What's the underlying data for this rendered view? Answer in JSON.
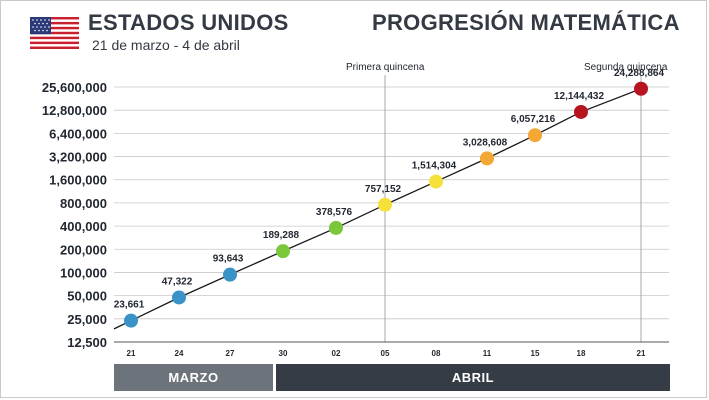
{
  "header": {
    "country": "ESTADOS UNIDOS",
    "date_range": "21 de marzo - 4 de abril",
    "title": "PROGRESIÓN MATEMÁTICA"
  },
  "flag_icon": "us-flag-icon",
  "colors": {
    "line": "#1a1a1a",
    "grid": "#c8c8c8",
    "blue": "#3a93c8",
    "green": "#7cc63a",
    "yellow": "#f5e13a",
    "orange": "#f5a733",
    "red": "#b81420",
    "month_march": "#6c737a",
    "month_april": "#353c46"
  },
  "months": {
    "march": "MARZO",
    "april": "ABRIL"
  },
  "chart_data": {
    "type": "line",
    "title": "PROGRESIÓN MATEMÁTICA",
    "yscale": "log",
    "ylim": [
      12500,
      25600000
    ],
    "grid": "horizontal",
    "categories": [
      "21",
      "24",
      "27",
      "30",
      "02",
      "05",
      "08",
      "11",
      "15",
      "18",
      "21"
    ],
    "values": [
      23661,
      47322,
      93643,
      189288,
      378576,
      757152,
      1514304,
      3028608,
      6057216,
      12144432,
      24288864
    ],
    "value_labels": [
      "23,661",
      "47,322",
      "93,643",
      "189,288",
      "378,576",
      "757,152",
      "1,514,304",
      "3,028,608",
      "6,057,216",
      "12,144,432",
      "24,288,864"
    ],
    "point_colors": [
      "blue",
      "blue",
      "blue",
      "green",
      "green",
      "yellow",
      "yellow",
      "orange",
      "orange",
      "red",
      "red"
    ],
    "yticks": [
      {
        "value": 12500,
        "label": "12,500"
      },
      {
        "value": 25000,
        "label": "25,000"
      },
      {
        "value": 50000,
        "label": "50,000"
      },
      {
        "value": 100000,
        "label": "100,000"
      },
      {
        "value": 200000,
        "label": "200,000"
      },
      {
        "value": 400000,
        "label": "400,000"
      },
      {
        "value": 800000,
        "label": "800,000"
      },
      {
        "value": 1600000,
        "label": "1,600,000"
      },
      {
        "value": 3200000,
        "label": "3,200,000"
      },
      {
        "value": 6400000,
        "label": "6,400,000"
      },
      {
        "value": 12800000,
        "label": "12,800,000"
      },
      {
        "value": 25600000,
        "label": "25,600,000"
      }
    ],
    "annotations": [
      {
        "text": "Primera quincena",
        "category_index": 5
      },
      {
        "text": "Segunda quincena",
        "category_index": 10
      }
    ]
  }
}
